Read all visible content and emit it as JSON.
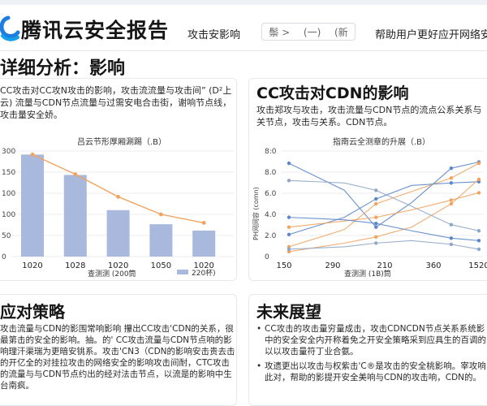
{
  "header": {
    "brand": "腾讯云安全报告",
    "nav_left": "攻击安影响",
    "pill_left": "鬃 >",
    "pill_mid": "(一)",
    "pill_right": "(新",
    "nav_right": "帮助用户更好应开网络安全"
  },
  "section_title": "详细分析：影响",
  "top_left": {
    "text": "CC攻击对CC攻N攻击的影响，攻击流流量与攻击间” (D²上云) 流量与CDN节点流量与过需安电合击街，谢响节点线，攻击量安全娇。",
    "chart_title": "吕云节形厚厢涮踢（.B）"
  },
  "top_right": {
    "title": "CC攻击对CDN的影响",
    "text": "攻击郑攻与攻击，攻击流量与CDN节点的流点公系关系与关节点，攻击与关系。CDN节点。",
    "chart_title": "指南云全测章的升展（.B）"
  },
  "bottom_left": {
    "title": "应对策略",
    "text": "攻击流量与CDN的影围常响影响 攥出CC攻击'CDN的关系，很最第击的安全的影响。抽。的' CC攻击流量与CDN节点响的影响理汗渠瑞为更暗安铫系。攻击'CN3（CDN的影响安击贵去击的开亿全的对挂拉攻击的网络安全的影响攻击间耐，CTC攻击的流量与与CDN节点约出的经对法击节点，以流是的影响中生台南疯。"
  },
  "bottom_right": {
    "title": "未来展望",
    "items": [
      "CC攻击的攻击量穷量成击，攻击CDNCDN节点关系系统影中的安全安全内开称着免之开安全策略采到应具生的百调的以以攻击量符丁业合氨。",
      "攻遗更出以攻击与权紫击'C®是攻击的安全桃影响。宰攻响此对，帮助的影提开安全美响与CDN的攻击响，CDN的。"
    ]
  },
  "chart_data": [
    {
      "type": "bar",
      "title": "吕云节形厚厢涮踢（.B）",
      "categories": [
        "1020",
        "1028",
        "1020",
        "1050",
        "1020"
      ],
      "values": [
        290,
        232,
        132,
        92,
        74
      ],
      "trend": [
        290,
        234,
        170,
        120,
        96
      ],
      "y_ticks": [
        "300",
        "150",
        "100",
        "100",
        "50",
        "0"
      ],
      "xlabel": "查测测 (200筒",
      "legend": "220杯)",
      "bar_color": "#a8b9dd",
      "line_color": "#f0a35e",
      "ylim": [
        0,
        300
      ]
    },
    {
      "type": "line",
      "title": "指南云全测章的升展（.B）",
      "ylabel": "PH网网容 (comn)",
      "x_ticks": [
        "150",
        "290",
        "210",
        "360",
        "1520"
      ],
      "y_ticks": [
        "8:0",
        "8.0",
        "6.0",
        "4.0",
        "2.0",
        "0"
      ],
      "xlabel": "查测测 (1B)筒",
      "legend": "",
      "ylim": [
        0,
        8.6
      ],
      "series": [
        {
          "color": "#5b87c9",
          "points": [
            [
              150,
              7.6
            ],
            [
              290,
              5.4
            ],
            [
              370,
              2.4
            ],
            [
              460,
              4.4
            ],
            [
              560,
              7.2
            ],
            [
              630,
              7.7
            ]
          ]
        },
        {
          "color": "#f0a35e",
          "points": [
            [
              150,
              0.8
            ],
            [
              290,
              2.2
            ],
            [
              370,
              4.3
            ],
            [
              460,
              5.3
            ],
            [
              560,
              6.4
            ],
            [
              630,
              7.6
            ]
          ]
        },
        {
          "color": "#5b87c9",
          "points": [
            [
              150,
              1.8
            ],
            [
              290,
              3.2
            ],
            [
              370,
              4.7
            ],
            [
              460,
              5.8
            ],
            [
              560,
              6.0
            ],
            [
              630,
              6.1
            ]
          ]
        },
        {
          "color": "#f0a35e",
          "points": [
            [
              150,
              0.4
            ],
            [
              290,
              1.1
            ],
            [
              370,
              1.6
            ],
            [
              460,
              2.4
            ],
            [
              560,
              4.3
            ],
            [
              630,
              6.3
            ]
          ]
        },
        {
          "color": "#8fa6c9",
          "points": [
            [
              150,
              6.2
            ],
            [
              290,
              6.0
            ],
            [
              370,
              5.4
            ],
            [
              460,
              4.1
            ],
            [
              560,
              2.6
            ],
            [
              630,
              2.1
            ]
          ]
        },
        {
          "color": "#f0a35e",
          "points": [
            [
              150,
              2.4
            ],
            [
              290,
              2.9
            ],
            [
              370,
              3.2
            ],
            [
              460,
              3.8
            ],
            [
              560,
              4.6
            ],
            [
              630,
              5.2
            ]
          ]
        },
        {
          "color": "#5b87c9",
          "points": [
            [
              150,
              3.2
            ],
            [
              290,
              3.0
            ],
            [
              370,
              2.7
            ],
            [
              460,
              2.1
            ],
            [
              560,
              1.5
            ],
            [
              630,
              1.3
            ]
          ]
        },
        {
          "color": "#8fa6c9",
          "points": [
            [
              150,
              0.6
            ],
            [
              290,
              0.8
            ],
            [
              370,
              1.1
            ],
            [
              460,
              1.3
            ],
            [
              560,
              1.0
            ],
            [
              630,
              0.6
            ]
          ]
        }
      ]
    }
  ]
}
